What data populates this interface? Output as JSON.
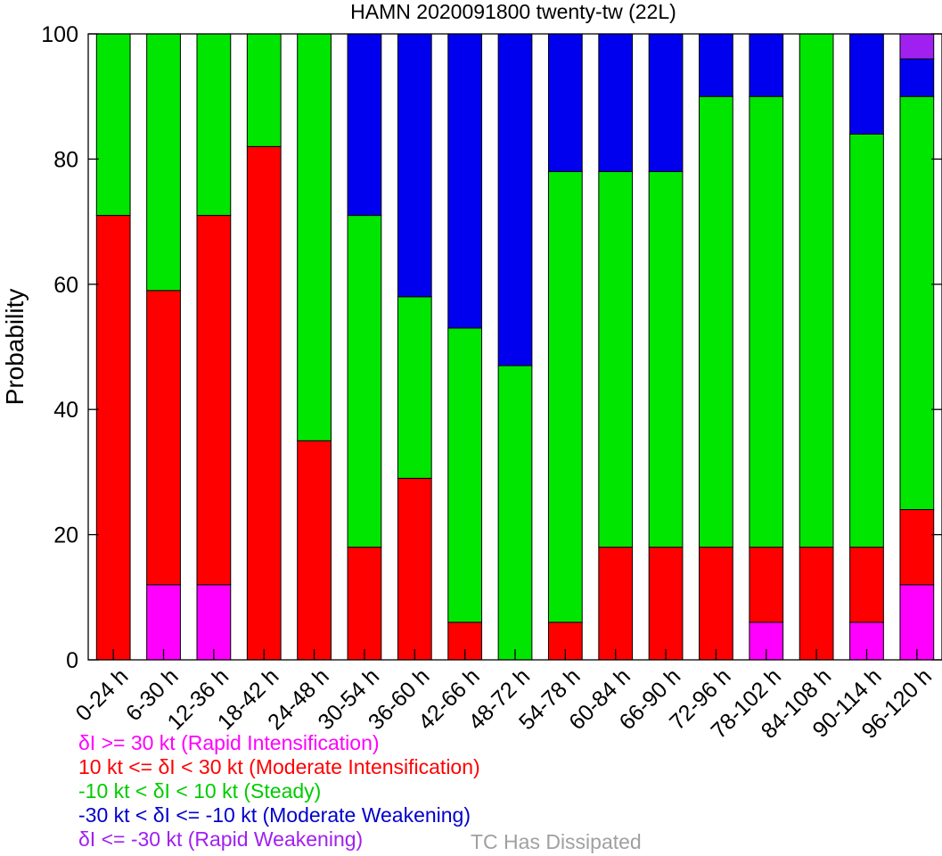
{
  "chart_data": {
    "type": "bar",
    "stacked": true,
    "title": "HAMN 2020091800 twenty-tw (22L)",
    "xlabel": "",
    "ylabel": "Probability",
    "ylim": [
      0,
      100
    ],
    "yticks": [
      "0",
      "20",
      "40",
      "60",
      "80",
      "100"
    ],
    "grid": false,
    "categories": [
      "0-24 h",
      "6-30 h",
      "12-36 h",
      "18-42 h",
      "24-48 h",
      "30-54 h",
      "36-60 h",
      "42-66 h",
      "48-72 h",
      "54-78 h",
      "60-84 h",
      "66-90 h",
      "72-96 h",
      "78-102 h",
      "84-108 h",
      "90-114 h",
      "96-120 h"
    ],
    "series": [
      {
        "name": "δI >= 30 kt (Rapid Intensification)",
        "color": "#ff00ff",
        "values": [
          0,
          12,
          12,
          0,
          0,
          0,
          0,
          0,
          0,
          0,
          0,
          0,
          0,
          6,
          0,
          6,
          12
        ]
      },
      {
        "name": "10 kt <= δI < 30 kt (Moderate Intensification)",
        "color": "#ff0000",
        "values": [
          71,
          47,
          59,
          82,
          35,
          18,
          29,
          6,
          0,
          6,
          18,
          18,
          18,
          12,
          18,
          12,
          12
        ]
      },
      {
        "name": "-10 kt < δI < 10 kt (Steady)",
        "color": "#00e600",
        "values": [
          29,
          41,
          29,
          18,
          65,
          53,
          29,
          47,
          47,
          72,
          60,
          60,
          72,
          72,
          82,
          66,
          66
        ]
      },
      {
        "name": "-30 kt < δI <= -10 kt (Moderate Weakening)",
        "color": "#0000ee",
        "values": [
          0,
          0,
          0,
          0,
          0,
          29,
          42,
          47,
          53,
          22,
          22,
          22,
          10,
          10,
          0,
          16,
          6
        ]
      },
      {
        "name": "δI <= -30 kt (Rapid Weakening)",
        "color": "#a020f0",
        "values": [
          0,
          0,
          0,
          0,
          0,
          0,
          0,
          0,
          0,
          0,
          0,
          0,
          0,
          0,
          0,
          0,
          4
        ]
      }
    ],
    "legend": {
      "position": "bottom-left",
      "entries": [
        {
          "text": "δI >= 30 kt (Rapid Intensification)",
          "color": "#ff00ff"
        },
        {
          "text": "10 kt <= δI < 30 kt (Moderate Intensification)",
          "color": "#ff0000"
        },
        {
          "text": "-10 kt < δI < 10 kt (Steady)",
          "color": "#00cc00"
        },
        {
          "text": "-30 kt < δI <= -10 kt (Moderate Weakening)",
          "color": "#0000cc"
        },
        {
          "text": "δI <= -30 kt (Rapid Weakening)",
          "color": "#a020f0"
        }
      ],
      "note": "TC Has Dissipated",
      "note_color": "#a0a0a0"
    }
  }
}
